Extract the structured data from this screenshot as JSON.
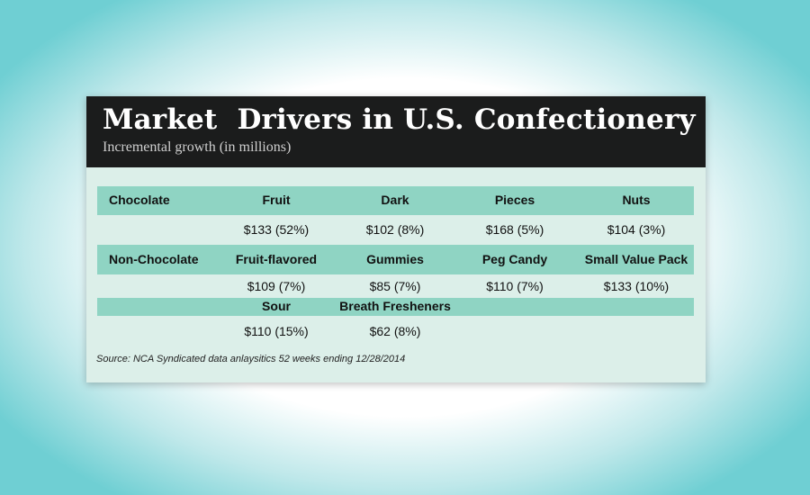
{
  "header": {
    "title": "Market  Drivers in U.S. Confectionery",
    "subtitle": "Incremental growth (in millions)"
  },
  "table": {
    "groups": [
      {
        "label": "Chocolate",
        "items": [
          {
            "name": "Fruit",
            "value": "$133 (52%)"
          },
          {
            "name": "Dark",
            "value": "$102 (8%)"
          },
          {
            "name": "Pieces",
            "value": "$168 (5%)"
          },
          {
            "name": "Nuts",
            "value": "$104 (3%)"
          }
        ]
      },
      {
        "label": "Non-Chocolate",
        "items": [
          {
            "name": "Fruit-flavored",
            "value": "$109 (7%)"
          },
          {
            "name": "Gummies",
            "value": "$85 (7%)"
          },
          {
            "name": "Peg Candy",
            "value": "$110 (7%)"
          },
          {
            "name": "Small Value Pack",
            "value": "$133 (10%)"
          }
        ]
      },
      {
        "items": [
          {
            "name": "Sour",
            "value": "$110 (15%)"
          },
          {
            "name": "Breath Fresheners",
            "value": "$62 (8%)"
          }
        ]
      }
    ]
  },
  "footer": {
    "source": "Source: NCA Syndicated data anlaysitics 52 weeks ending 12/28/2014"
  }
}
